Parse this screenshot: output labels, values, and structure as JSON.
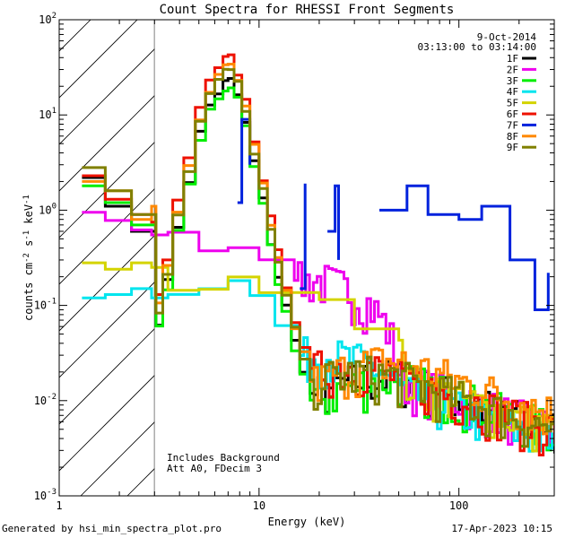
{
  "chart_data": {
    "type": "line",
    "title": "Count Spectra for RHESSI Front Segments",
    "xlabel": "Energy (keV)",
    "ylabel": "counts cm^-2 s^-1 keV^-1",
    "x_scale": "log",
    "y_scale": "log",
    "xlim": [
      1,
      300
    ],
    "ylim": [
      0.001,
      100
    ],
    "x_ticks": [
      {
        "v": 10,
        "label": "10"
      },
      {
        "v": 100,
        "label": "100"
      }
    ],
    "x_tick_labels_extra": [
      {
        "v": 1,
        "label": "1"
      }
    ],
    "y_ticks": [
      {
        "v": 0.001,
        "base": "10",
        "exp": "-3"
      },
      {
        "v": 0.01,
        "base": "10",
        "exp": "-2"
      },
      {
        "v": 0.1,
        "base": "10",
        "exp": "-1"
      },
      {
        "v": 1,
        "base": "10",
        "exp": "0"
      },
      {
        "v": 10,
        "base": "10",
        "exp": "1"
      },
      {
        "v": 100,
        "base": "10",
        "exp": "2"
      }
    ],
    "hatched_region_keV": [
      1,
      3
    ],
    "date": "9-Oct-2014",
    "time_range": "03:13:00 to 03:14:00",
    "annotations": [
      "Includes Background",
      "Att A0, FDecim 3"
    ],
    "legend_position": "top-right",
    "series": [
      {
        "name": "1F",
        "color": "#000000",
        "peak": 23,
        "low": [
          [
            1.3,
            2.2
          ],
          [
            1.7,
            1.1
          ],
          [
            2.3,
            0.6
          ],
          [
            2.9,
            0.6
          ]
        ],
        "tail": 0.02
      },
      {
        "name": "2F",
        "color": "#ee00ee",
        "peak": null,
        "low": [
          [
            1.3,
            0.95
          ],
          [
            1.7,
            0.78
          ],
          [
            2.3,
            0.62
          ],
          [
            2.9,
            0.55
          ]
        ],
        "mid": [
          [
            3.5,
            0.52
          ],
          [
            5,
            0.45
          ],
          [
            7,
            0.42
          ],
          [
            10,
            0.35
          ],
          [
            15,
            0.22
          ]
        ],
        "tail": 0.02
      },
      {
        "name": "3F",
        "color": "#00ee00",
        "peak": 20,
        "low": [
          [
            1.3,
            1.8
          ],
          [
            1.7,
            1.2
          ],
          [
            2.3,
            0.7
          ],
          [
            2.9,
            0.7
          ]
        ],
        "tail": 0.02
      },
      {
        "name": "4F",
        "color": "#00e5ee",
        "peak": null,
        "low": [
          [
            1.3,
            0.12
          ],
          [
            1.7,
            0.13
          ],
          [
            2.3,
            0.15
          ],
          [
            2.9,
            0.12
          ]
        ],
        "mid": [
          [
            3.5,
            0.15
          ],
          [
            5,
            0.18
          ],
          [
            7,
            0.2
          ],
          [
            9,
            0.12
          ],
          [
            12,
            0.06
          ],
          [
            16,
            0.03
          ]
        ],
        "tail": 0.015
      },
      {
        "name": "5F",
        "color": "#d4d400",
        "peak": null,
        "low": [
          [
            1.3,
            0.28
          ],
          [
            1.7,
            0.24
          ],
          [
            2.3,
            0.28
          ],
          [
            2.9,
            0.25
          ]
        ],
        "mid": [
          [
            3.5,
            0.17
          ],
          [
            5,
            0.16
          ],
          [
            7,
            0.17
          ],
          [
            10,
            0.17
          ],
          [
            14,
            0.16
          ],
          [
            20,
            0.12
          ],
          [
            30,
            0.07
          ],
          [
            50,
            0.04
          ]
        ],
        "tail": 0.02
      },
      {
        "name": "6F",
        "color": "#ee1100",
        "peak": 40,
        "low": [
          [
            1.3,
            2.3
          ],
          [
            1.7,
            1.3
          ],
          [
            2.3,
            0.9
          ],
          [
            2.9,
            0.75
          ]
        ],
        "tail": 0.02
      },
      {
        "name": "7F",
        "color": "#0022dd",
        "peak": null,
        "low": [],
        "segments": [
          [
            [
              7.8,
              1.2
            ],
            [
              8.2,
              9
            ],
            [
              9,
              3
            ]
          ],
          [
            [
              16,
              0.15
            ],
            [
              17,
              1.9
            ]
          ],
          [
            [
              22,
              0.6
            ],
            [
              24,
              1.8
            ],
            [
              25,
              0.3
            ]
          ],
          [
            [
              40,
              1.0
            ],
            [
              55,
              1.8
            ],
            [
              70,
              0.9
            ],
            [
              100,
              0.8
            ],
            [
              130,
              1.1
            ],
            [
              180,
              0.3
            ],
            [
              240,
              0.09
            ],
            [
              280,
              0.22
            ]
          ]
        ],
        "tail": null
      },
      {
        "name": "8F",
        "color": "#ff8800",
        "peak": 33,
        "low": [
          [
            1.3,
            2.0
          ],
          [
            1.7,
            1.6
          ],
          [
            2.3,
            0.8
          ],
          [
            2.9,
            1.1
          ]
        ],
        "tail": 0.03
      },
      {
        "name": "9F",
        "color": "#808000",
        "peak": 30,
        "low": [
          [
            1.3,
            2.8
          ],
          [
            1.7,
            1.6
          ],
          [
            2.3,
            0.9
          ],
          [
            2.9,
            0.9
          ]
        ],
        "tail": 0.02
      }
    ]
  },
  "footer": {
    "generated_by": "Generated by hsi_min_spectra_plot.pro",
    "timestamp": "17-Apr-2023 10:15"
  }
}
